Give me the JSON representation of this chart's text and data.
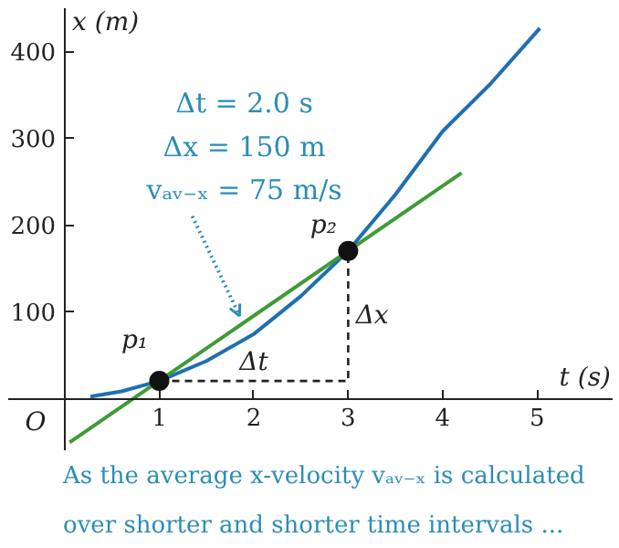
{
  "chart_data": {
    "type": "line",
    "xlabel": "t (s)",
    "ylabel": "x (m)",
    "xlim": [
      -0.6,
      5.8
    ],
    "ylim": [
      -60,
      450
    ],
    "xticks": [
      1,
      2,
      3,
      4,
      5
    ],
    "yticks": [
      100,
      200,
      300,
      400
    ],
    "grid": false,
    "series": [
      {
        "color": "#1f6fb2",
        "x": [
          0.27,
          0.6,
          1,
          1.5,
          2,
          2.5,
          3,
          3.5,
          4,
          4.5,
          5.03
        ],
        "values": [
          2,
          8,
          20,
          43,
          74,
          118,
          170,
          235,
          308,
          362,
          427
        ]
      },
      {
        "color": "#3f9b35",
        "x": [
          0.05,
          4.2
        ],
        "values": [
          -51,
          260
        ]
      },
      {
        "color": "#222222",
        "line_style": "dashed",
        "x": [
          1,
          3,
          3
        ],
        "values": [
          20,
          20,
          170
        ]
      },
      {
        "type": "scatter",
        "color": "#111111",
        "marker": "circle",
        "x": [
          1,
          3
        ],
        "values": [
          20,
          170
        ]
      }
    ],
    "annotations": [
      {
        "text": "p₁",
        "x": 1,
        "y": 20
      },
      {
        "text": "p₂",
        "x": 3,
        "y": 170
      },
      {
        "text": "Δt",
        "x": 2,
        "y": 20
      },
      {
        "text": "Δx",
        "x": 3,
        "y": 95
      },
      "O",
      "Δt = 2.0 s",
      "Δx = 150 m",
      {
        "text": "vₐᵥ₋ₓ = 75 m/s",
        "x": 1.85,
        "y": 95
      },
      "As the average x-velocity vₐᵥ₋ₓ is calculated",
      "over shorter and shorter time intervals ..."
    ]
  }
}
